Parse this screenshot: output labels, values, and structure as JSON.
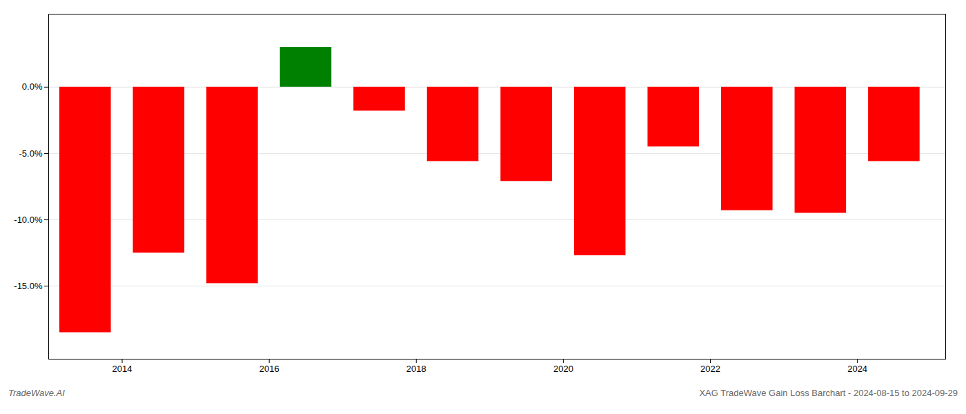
{
  "chart_data": {
    "type": "bar",
    "x": [
      2013.5,
      2014.5,
      2015.5,
      2016.5,
      2017.5,
      2018.5,
      2019.5,
      2020.5,
      2021.5,
      2022.5,
      2023.5,
      2024.5
    ],
    "values": [
      -0.185,
      -0.125,
      -0.148,
      0.03,
      -0.018,
      -0.056,
      -0.071,
      -0.127,
      -0.045,
      -0.093,
      -0.095,
      -0.056
    ],
    "colors": [
      "#ff0000",
      "#ff0000",
      "#ff0000",
      "#008000",
      "#ff0000",
      "#ff0000",
      "#ff0000",
      "#ff0000",
      "#ff0000",
      "#ff0000",
      "#ff0000",
      "#ff0000"
    ],
    "xlim": [
      2013.0,
      2025.2
    ],
    "xticks": [
      2014,
      2016,
      2018,
      2020,
      2022,
      2024
    ],
    "ylim": [
      -0.205,
      0.055
    ],
    "yticks": [
      {
        "value": -0.15,
        "label": "-15.0%"
      },
      {
        "value": -0.1,
        "label": "-10.0%"
      },
      {
        "value": -0.05,
        "label": "-5.0%"
      },
      {
        "value": 0.0,
        "label": "0.0%"
      }
    ],
    "grid": true,
    "annotations": [
      "TradeWave.AI",
      "XAG TradeWave Gain Loss Barchart - 2024-08-15 to 2024-09-29"
    ]
  }
}
